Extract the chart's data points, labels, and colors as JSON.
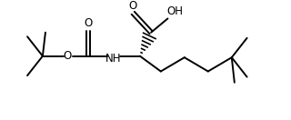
{
  "bg_color": "#ffffff",
  "line_color": "#000000",
  "lw": 1.4,
  "fs": 8.5,
  "xlim": [
    0,
    10
  ],
  "ylim": [
    0,
    4.125
  ]
}
